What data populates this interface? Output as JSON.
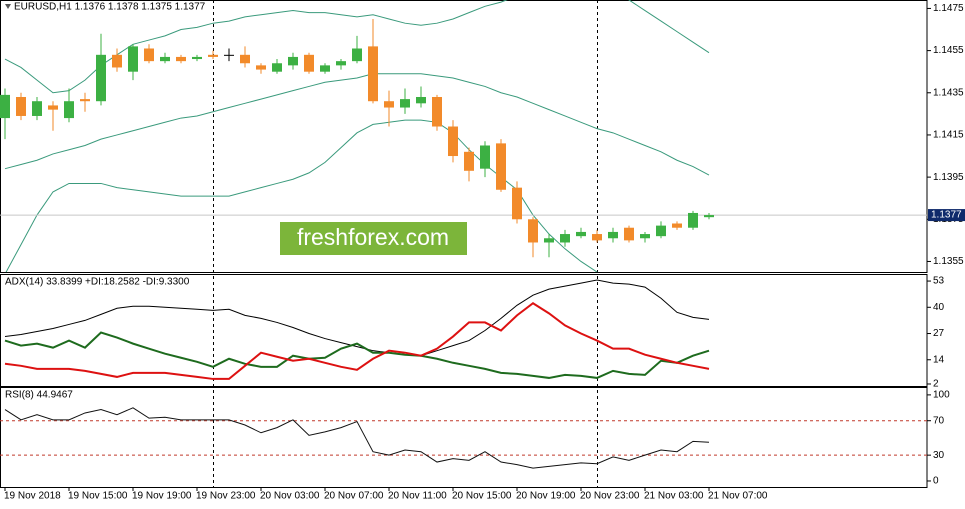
{
  "chart_data": [
    {
      "type": "candlestick",
      "title": "EURUSD,H1  1.1376 1.1378 1.1375 1.1377",
      "watermark": "freshforex.com",
      "categories": [
        "19 Nov 2018",
        null,
        null,
        null,
        "19 Nov 15:00",
        null,
        null,
        null,
        "19 Nov 19:00",
        null,
        null,
        null,
        "19 Nov 23:00",
        null,
        null,
        null,
        "20 Nov 03:00",
        null,
        null,
        null,
        "20 Nov 07:00",
        null,
        null,
        null,
        "20 Nov 11:00",
        null,
        null,
        null,
        "20 Nov 15:00",
        null,
        null,
        null,
        "20 Nov 19:00",
        null,
        null,
        null,
        "20 Nov 23:00",
        null,
        null,
        null,
        "21 Nov 03:00",
        null,
        null,
        null,
        "21 Nov 07:00"
      ],
      "open": [
        1.1423,
        1.1433,
        1.1424,
        1.1429,
        1.1423,
        1.1432,
        1.1431,
        1.1453,
        1.1445,
        1.1456,
        1.145,
        1.1452,
        1.1451,
        1.1453,
        1.1453,
        1.1453,
        1.1448,
        1.1445,
        1.1448,
        1.1453,
        1.1445,
        1.1448,
        1.145,
        1.1457,
        1.1431,
        1.1428,
        1.143,
        1.1433,
        1.1419,
        1.1407,
        1.1399,
        1.1411,
        1.139,
        1.1375,
        1.1364,
        1.1364,
        1.1367,
        1.1368,
        1.1366,
        1.1371,
        1.1366,
        1.1367,
        1.1373,
        1.1371,
        1.1376
      ],
      "high": [
        1.1437,
        1.1435,
        1.1433,
        1.1431,
        1.1437,
        1.1435,
        1.1463,
        1.1456,
        1.1458,
        1.1458,
        1.1454,
        1.1453,
        1.1453,
        1.1455,
        1.1456,
        1.1457,
        1.1449,
        1.1451,
        1.1454,
        1.1454,
        1.1449,
        1.1451,
        1.1462,
        1.147,
        1.1436,
        1.1437,
        1.1438,
        1.1434,
        1.1422,
        1.1409,
        1.1412,
        1.1413,
        1.1393,
        1.1376,
        1.1368,
        1.137,
        1.1371,
        1.137,
        1.1371,
        1.1372,
        1.1369,
        1.1374,
        1.1374,
        1.1379,
        1.1378
      ],
      "low": [
        1.1413,
        1.1422,
        1.1422,
        1.1417,
        1.1421,
        1.1426,
        1.1429,
        1.1445,
        1.1441,
        1.1449,
        1.1449,
        1.1449,
        1.145,
        1.1451,
        1.145,
        1.1447,
        1.1444,
        1.1444,
        1.1446,
        1.1444,
        1.1444,
        1.1446,
        1.1449,
        1.143,
        1.1419,
        1.1425,
        1.1428,
        1.1417,
        1.1402,
        1.1393,
        1.1395,
        1.1388,
        1.1373,
        1.1357,
        1.1357,
        1.1362,
        1.1366,
        1.1364,
        1.1364,
        1.1364,
        1.1364,
        1.1366,
        1.137,
        1.137,
        1.1375
      ],
      "close": [
        1.1434,
        1.1424,
        1.1431,
        1.1427,
        1.1431,
        1.1431,
        1.1453,
        1.1447,
        1.1457,
        1.145,
        1.1452,
        1.145,
        1.1452,
        1.1452,
        1.1453,
        1.1449,
        1.1446,
        1.1449,
        1.1452,
        1.1445,
        1.1448,
        1.145,
        1.1456,
        1.1431,
        1.1428,
        1.1432,
        1.1433,
        1.1419,
        1.1405,
        1.1398,
        1.141,
        1.1389,
        1.1375,
        1.1364,
        1.1366,
        1.1368,
        1.1369,
        1.1365,
        1.1369,
        1.1365,
        1.1368,
        1.1372,
        1.1371,
        1.1378,
        1.1377
      ],
      "up_color": "#3cb043",
      "down_color": "#f28a2a",
      "doji_color": "#000000",
      "bollinger": {
        "color": "#3a9a7c",
        "upper": [
          1.1451,
          1.1447,
          1.1441,
          1.1435,
          1.1436,
          1.1441,
          1.1448,
          1.1453,
          1.1458,
          1.146,
          1.1462,
          1.1465,
          1.1466,
          1.1468,
          1.1469,
          1.1471,
          1.1472,
          1.1473,
          1.1474,
          1.1473,
          1.1473,
          1.1472,
          1.1471,
          1.1472,
          1.147,
          1.1468,
          1.1467,
          1.1468,
          1.147,
          1.1473,
          1.1476,
          1.1478,
          1.1481,
          1.1484,
          1.1488,
          1.1491,
          1.1491,
          1.1488,
          1.1484,
          1.1479,
          1.1474,
          1.1469,
          1.1464,
          1.1459,
          1.1454
        ],
        "middle": [
          1.1399,
          1.1401,
          1.1403,
          1.1406,
          1.1408,
          1.141,
          1.1413,
          1.1415,
          1.1417,
          1.1419,
          1.1421,
          1.1423,
          1.1424,
          1.1426,
          1.1428,
          1.143,
          1.1432,
          1.1434,
          1.1436,
          1.1438,
          1.144,
          1.1441,
          1.1442,
          1.1444,
          1.1444,
          1.1444,
          1.1444,
          1.1443,
          1.1442,
          1.144,
          1.1438,
          1.1435,
          1.1433,
          1.143,
          1.1427,
          1.1424,
          1.1421,
          1.1418,
          1.1416,
          1.1413,
          1.141,
          1.1407,
          1.1403,
          1.14,
          1.1396
        ],
        "lower": [
          1.1349,
          1.1363,
          1.1377,
          1.1388,
          1.1392,
          1.1392,
          1.1392,
          1.139,
          1.1389,
          1.1388,
          1.1387,
          1.1386,
          1.1386,
          1.1386,
          1.1386,
          1.1388,
          1.139,
          1.1392,
          1.1394,
          1.1397,
          1.1402,
          1.1409,
          1.1416,
          1.142,
          1.1421,
          1.1422,
          1.1422,
          1.1421,
          1.1416,
          1.1408,
          1.1401,
          1.1395,
          1.1389,
          1.1377,
          1.1368,
          1.1361,
          1.1355,
          1.135,
          1.1344,
          1.1338,
          1.1333,
          1.1327,
          1.1321,
          1.1316,
          1.131
        ]
      },
      "last_price": 1.1377,
      "last_price_color": "#0f2a6b",
      "ylim": [
        1.135,
        1.1479
      ],
      "yticks": [
        1.1475,
        1.1455,
        1.1435,
        1.1415,
        1.1395,
        1.1375,
        1.1355
      ]
    },
    {
      "type": "line",
      "title": "ADX(14) 33.8399 +DI:18.2582 -DI:9.3300",
      "series": [
        {
          "color": "#000000",
          "width": 1,
          "values": [
            25.5,
            26.5,
            28,
            29.5,
            31.5,
            33.5,
            36.5,
            39.5,
            40.5,
            40.5,
            40,
            39.5,
            39,
            38.5,
            39,
            36,
            34.5,
            32.5,
            30,
            27,
            24.5,
            22.5,
            20.5,
            18.5,
            17.5,
            16.5,
            16,
            18.5,
            21,
            23.5,
            28.5,
            34.5,
            41,
            46,
            49,
            50.5,
            52,
            53.5,
            52,
            51.5,
            50,
            44.5,
            37.5,
            35,
            34
          ]
        },
        {
          "color": "#1e6b1e",
          "width": 2,
          "values": [
            23.5,
            21,
            22,
            20,
            23.5,
            20,
            27.5,
            25,
            22,
            19.5,
            17,
            15,
            13,
            10.5,
            14.5,
            12,
            10.5,
            10.5,
            16,
            14.5,
            15,
            19.5,
            22,
            17.5,
            17.5,
            16.5,
            16,
            14.5,
            12.5,
            11,
            9.5,
            7.5,
            7,
            6,
            5,
            6.5,
            6,
            5,
            8.5,
            7,
            6.5,
            13.5,
            12.5,
            16,
            18.5
          ]
        },
        {
          "color": "#dd1111",
          "width": 2,
          "values": [
            12,
            11,
            9.5,
            9.5,
            9.5,
            8.5,
            7,
            5.5,
            7.5,
            7.5,
            7.5,
            6.5,
            5.5,
            4.5,
            4.5,
            11,
            17.5,
            15.5,
            13.5,
            14.5,
            12.5,
            10.5,
            9,
            14.5,
            18.5,
            17.5,
            16,
            19.5,
            25.5,
            32.5,
            32.5,
            28.5,
            36,
            42,
            37,
            31,
            27,
            23.5,
            19.5,
            19.5,
            16.5,
            14.5,
            12.5,
            11,
            9.5
          ]
        }
      ],
      "ylim": [
        1,
        56
      ],
      "yticks": [
        53,
        40,
        27,
        14,
        2
      ]
    },
    {
      "type": "line",
      "title": "RSI(8) 44.9467",
      "series": [
        {
          "color": "#111111",
          "width": 1,
          "values": [
            83,
            71,
            77,
            71,
            71,
            79,
            83,
            77,
            85,
            73,
            74,
            71,
            71,
            71,
            71,
            65,
            56,
            62,
            71,
            53,
            57,
            62,
            69,
            34,
            30,
            36,
            34,
            22,
            26,
            24,
            34,
            22,
            19,
            15,
            17,
            19,
            21,
            20,
            28,
            24,
            30,
            36,
            34,
            46,
            45
          ]
        }
      ],
      "levels": [
        70,
        30
      ],
      "level_color": "#c0392b",
      "ylim": [
        -7,
        108
      ],
      "yticks": [
        100,
        70,
        30,
        0
      ]
    }
  ]
}
